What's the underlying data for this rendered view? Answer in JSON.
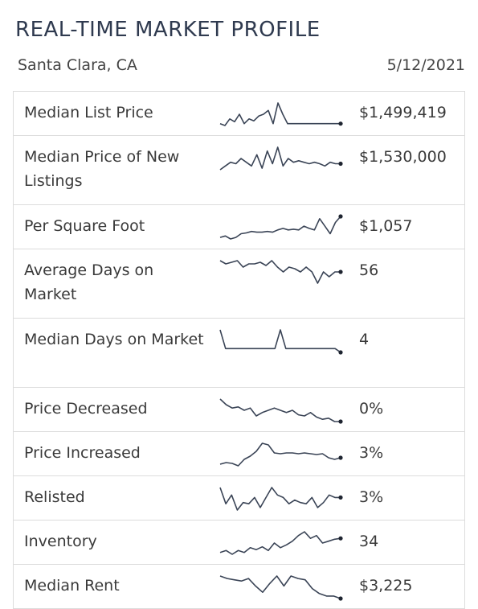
{
  "header": {
    "title": "REAL-TIME MARKET PROFILE",
    "location": "Santa Clara, CA",
    "date": "5/12/2021"
  },
  "colors": {
    "title": "#2f3a4f",
    "sparkline": "#3a4456",
    "border": "#dcdcdc"
  },
  "rows": [
    {
      "label": "Median List Price",
      "value": "$1,499,419",
      "trend": [
        50,
        48,
        55,
        52,
        60,
        50,
        55,
        53,
        58,
        60,
        64,
        50,
        72,
        60,
        50,
        50,
        50,
        50,
        50,
        50,
        50,
        50,
        50,
        50,
        50,
        50
      ]
    },
    {
      "label": "Median Price of New Listings",
      "value": "$1,530,000",
      "trend": [
        40,
        45,
        50,
        48,
        55,
        50,
        45,
        60,
        42,
        65,
        48,
        70,
        45,
        55,
        50,
        52,
        50,
        48,
        50,
        48,
        45,
        50,
        48,
        48
      ]
    },
    {
      "label": "Per Square Foot",
      "value": "$1,057",
      "trend": [
        30,
        32,
        28,
        30,
        35,
        36,
        38,
        37,
        37,
        38,
        37,
        40,
        42,
        40,
        41,
        40,
        45,
        42,
        40,
        55,
        45,
        35,
        50,
        58
      ]
    },
    {
      "label": "Average Days on Market",
      "value": "56",
      "trend": [
        62,
        60,
        61,
        62,
        58,
        60,
        60,
        61,
        59,
        62,
        58,
        55,
        58,
        57,
        55,
        58,
        55,
        48,
        55,
        52,
        55,
        55
      ]
    },
    {
      "label": "Median Days on Market",
      "value": "4",
      "trend": [
        5,
        4,
        4,
        4,
        4,
        4,
        4,
        4,
        4,
        4,
        4,
        5,
        4,
        4,
        4,
        4,
        4,
        4,
        4,
        4,
        4,
        4,
        3.8
      ]
    },
    {
      "label": "Price Decreased",
      "value": "0%",
      "trend": [
        70,
        65,
        62,
        63,
        60,
        62,
        55,
        58,
        60,
        62,
        60,
        58,
        60,
        56,
        55,
        58,
        54,
        52,
        53,
        50,
        50
      ]
    },
    {
      "label": "Price Increased",
      "value": "3%",
      "trend": [
        42,
        44,
        43,
        40,
        48,
        52,
        58,
        68,
        66,
        56,
        55,
        56,
        56,
        55,
        56,
        55,
        54,
        55,
        50,
        48,
        50
      ]
    },
    {
      "label": "Relisted",
      "value": "3%",
      "trend": [
        68,
        55,
        62,
        50,
        56,
        55,
        60,
        52,
        60,
        68,
        62,
        60,
        55,
        58,
        56,
        55,
        60,
        52,
        56,
        62,
        60,
        60
      ]
    },
    {
      "label": "Inventory",
      "value": "34",
      "trend": [
        40,
        42,
        38,
        42,
        40,
        45,
        43,
        46,
        42,
        50,
        45,
        48,
        52,
        58,
        62,
        55,
        58,
        50,
        52,
        54,
        55
      ]
    },
    {
      "label": "Median Rent",
      "value": "$3,225",
      "trend": [
        68,
        66,
        65,
        64,
        66,
        60,
        55,
        62,
        68,
        60,
        68,
        66,
        65,
        58,
        54,
        52,
        52,
        50
      ]
    }
  ]
}
